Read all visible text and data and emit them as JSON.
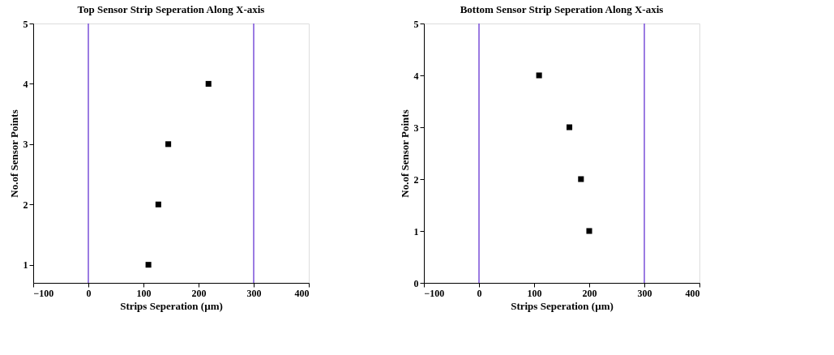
{
  "chart_data": [
    {
      "type": "scatter",
      "title": "Top Sensor Strip Seperation Along X-axis",
      "xlabel": "Strips Seperation (µm)",
      "ylabel": "No.of Sensor Points",
      "marker": "square",
      "grid": false,
      "series": [
        {
          "color": "#000000",
          "x": [
            109,
            127,
            145,
            218
          ],
          "values": [
            1,
            2,
            3,
            4
          ]
        }
      ],
      "xlim": [
        -100,
        400
      ],
      "xticks": [
        -100,
        0,
        100,
        200,
        300,
        400
      ],
      "ylim": [
        0.7,
        5
      ],
      "yticks": [
        1,
        2,
        3,
        4,
        5
      ],
      "ref_lines": [
        {
          "axis": "x",
          "value": 0,
          "color": "#7a4fd8"
        },
        {
          "axis": "x",
          "value": 300,
          "color": "#7a4fd8"
        }
      ]
    },
    {
      "type": "scatter",
      "title": "Bottom Sensor Strip Seperation Along X-axis",
      "xlabel": "Strips Seperation (µm)",
      "ylabel": "No.of Sensor Points",
      "marker": "square",
      "grid": false,
      "series": [
        {
          "color": "#000000",
          "x": [
            109,
            164,
            185,
            200
          ],
          "values": [
            4,
            3,
            2,
            1
          ]
        }
      ],
      "xlim": [
        -100,
        400
      ],
      "xticks": [
        -100,
        0,
        100,
        200,
        300,
        400
      ],
      "ylim": [
        0,
        5
      ],
      "yticks": [
        0,
        1,
        2,
        3,
        4,
        5
      ],
      "ref_lines": [
        {
          "axis": "x",
          "value": 0,
          "color": "#7a4fd8"
        },
        {
          "axis": "x",
          "value": 300,
          "color": "#7a4fd8"
        }
      ]
    }
  ]
}
